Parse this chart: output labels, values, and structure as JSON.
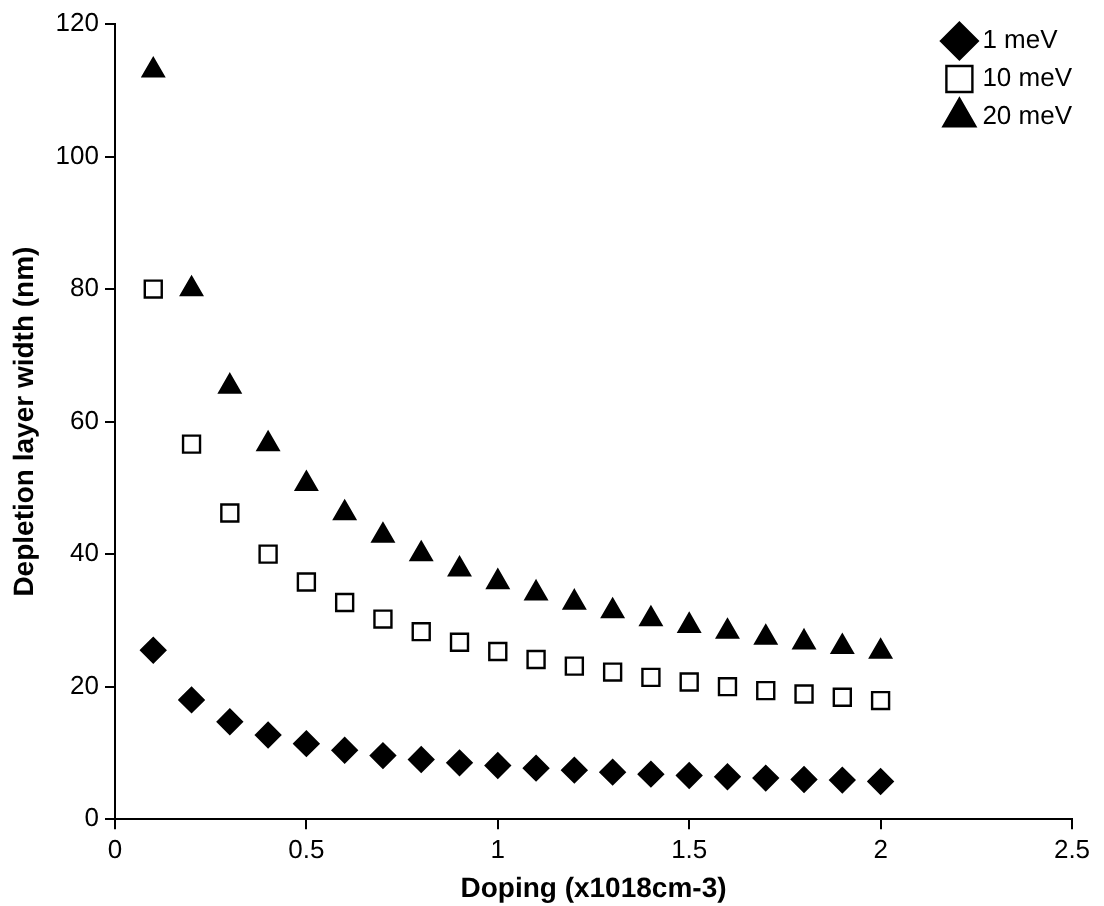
{
  "chart_data": {
    "type": "scatter",
    "xlabel": "Doping (x1018cm-3)",
    "ylabel": "Depletion layer width (nm)",
    "x": [
      0.1,
      0.2,
      0.3,
      0.4,
      0.5,
      0.6,
      0.7,
      0.8,
      0.9,
      1.0,
      1.1,
      1.2,
      1.3,
      1.4,
      1.5,
      1.6,
      1.7,
      1.8,
      1.9,
      2.0
    ],
    "series": [
      {
        "name": "1 meV",
        "color": "#000000",
        "marker": "diamond",
        "values": [
          25.5,
          18,
          14.7,
          12.7,
          11.4,
          10.4,
          9.6,
          9.0,
          8.5,
          8.1,
          7.7,
          7.4,
          7.1,
          6.8,
          6.6,
          6.4,
          6.2,
          6.0,
          5.9,
          5.7
        ]
      },
      {
        "name": "10 meV",
        "color": "#000000",
        "marker": "square",
        "values": [
          80,
          56.6,
          46.2,
          40,
          35.8,
          32.7,
          30.2,
          28.3,
          26.7,
          25.3,
          24.1,
          23.1,
          22.2,
          21.4,
          20.7,
          20.0,
          19.4,
          18.9,
          18.4,
          17.9
        ]
      },
      {
        "name": "20 meV",
        "color": "#000000",
        "marker": "triangle",
        "values": [
          113,
          80,
          65.3,
          56.6,
          50.6,
          46.2,
          42.8,
          40,
          37.7,
          35.8,
          34.1,
          32.7,
          31.4,
          30.2,
          29.2,
          28.3,
          27.4,
          26.7,
          26.0,
          25.3
        ]
      }
    ],
    "xlim": [
      0,
      2.5
    ],
    "xticks": [
      0,
      0.5,
      1,
      1.5,
      2,
      2.5
    ],
    "ylim": [
      0,
      120
    ],
    "yticks": [
      0,
      20,
      40,
      60,
      80,
      100,
      120
    ],
    "grid": false,
    "legend": "top right"
  }
}
